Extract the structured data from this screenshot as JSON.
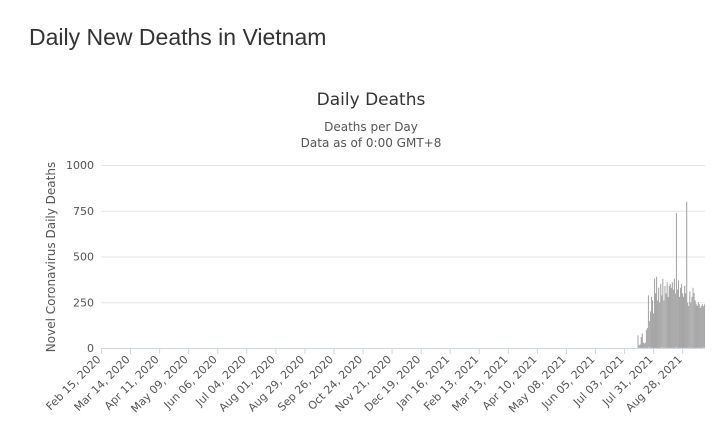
{
  "page": {
    "title": "Daily New Deaths in Vietnam"
  },
  "chart_data": {
    "type": "bar",
    "title": "Daily Deaths",
    "subtitle_lines": [
      "Deaths per Day",
      "Data as of 0:00 GMT+8"
    ],
    "ylabel": "Novel Coronavirus Daily Deaths",
    "xlabel": "",
    "ylim": [
      0,
      1000
    ],
    "y_ticks": [
      0,
      250,
      500,
      750,
      1000
    ],
    "grid": true,
    "legend": "none",
    "bar_color": "#7f7f7f",
    "x_start": "2020-02-15",
    "x_end": "2021-09-18",
    "x_tick_labels": [
      "Feb 15, 2020",
      "Mar 14, 2020",
      "Apr 11, 2020",
      "May 09, 2020",
      "Jun 06, 2020",
      "Jul 04, 2020",
      "Aug 01, 2020",
      "Aug 29, 2020",
      "Sep 26, 2020",
      "Oct 24, 2020",
      "Nov 21, 2020",
      "Dec 19, 2020",
      "Jan 16, 2021",
      "Feb 13, 2021",
      "Mar 13, 2021",
      "Apr 10, 2021",
      "May 08, 2021",
      "Jun 05, 2021",
      "Jul 03, 2021",
      "Jul 31, 2021",
      "Aug 28, 2021"
    ],
    "series": [
      {
        "x": [
          "2021-07-16",
          "2021-07-17",
          "2021-07-18",
          "2021-07-19",
          "2021-07-20",
          "2021-07-21",
          "2021-07-22",
          "2021-07-23",
          "2021-07-24",
          "2021-07-25",
          "2021-07-26",
          "2021-07-27",
          "2021-07-28",
          "2021-07-29",
          "2021-07-30",
          "2021-07-31",
          "2021-08-01",
          "2021-08-02",
          "2021-08-03",
          "2021-08-04",
          "2021-08-05",
          "2021-08-06",
          "2021-08-07",
          "2021-08-08",
          "2021-08-09",
          "2021-08-10",
          "2021-08-11",
          "2021-08-12",
          "2021-08-13",
          "2021-08-14",
          "2021-08-15",
          "2021-08-16",
          "2021-08-17",
          "2021-08-18",
          "2021-08-19",
          "2021-08-20",
          "2021-08-21",
          "2021-08-22",
          "2021-08-23",
          "2021-08-24",
          "2021-08-25",
          "2021-08-26",
          "2021-08-27",
          "2021-08-28",
          "2021-08-29",
          "2021-08-30",
          "2021-08-31",
          "2021-09-01",
          "2021-09-02",
          "2021-09-03",
          "2021-09-04",
          "2021-09-05",
          "2021-09-06",
          "2021-09-07",
          "2021-09-08",
          "2021-09-09",
          "2021-09-10",
          "2021-09-11",
          "2021-09-12",
          "2021-09-13",
          "2021-09-14",
          "2021-09-15",
          "2021-09-16",
          "2021-09-17",
          "2021-09-18"
        ],
        "values": [
          70,
          15,
          20,
          60,
          80,
          30,
          25,
          30,
          100,
          110,
          290,
          150,
          200,
          280,
          260,
          190,
          380,
          300,
          390,
          260,
          330,
          250,
          350,
          290,
          380,
          260,
          340,
          300,
          360,
          280,
          340,
          350,
          330,
          360,
          320,
          380,
          300,
          740,
          320,
          370,
          280,
          330,
          350,
          300,
          280,
          340,
          300,
          800,
          250,
          230,
          310,
          250,
          280,
          330,
          300,
          260,
          240,
          230,
          250,
          240,
          220,
          230,
          240,
          230,
          240
        ]
      }
    ]
  }
}
